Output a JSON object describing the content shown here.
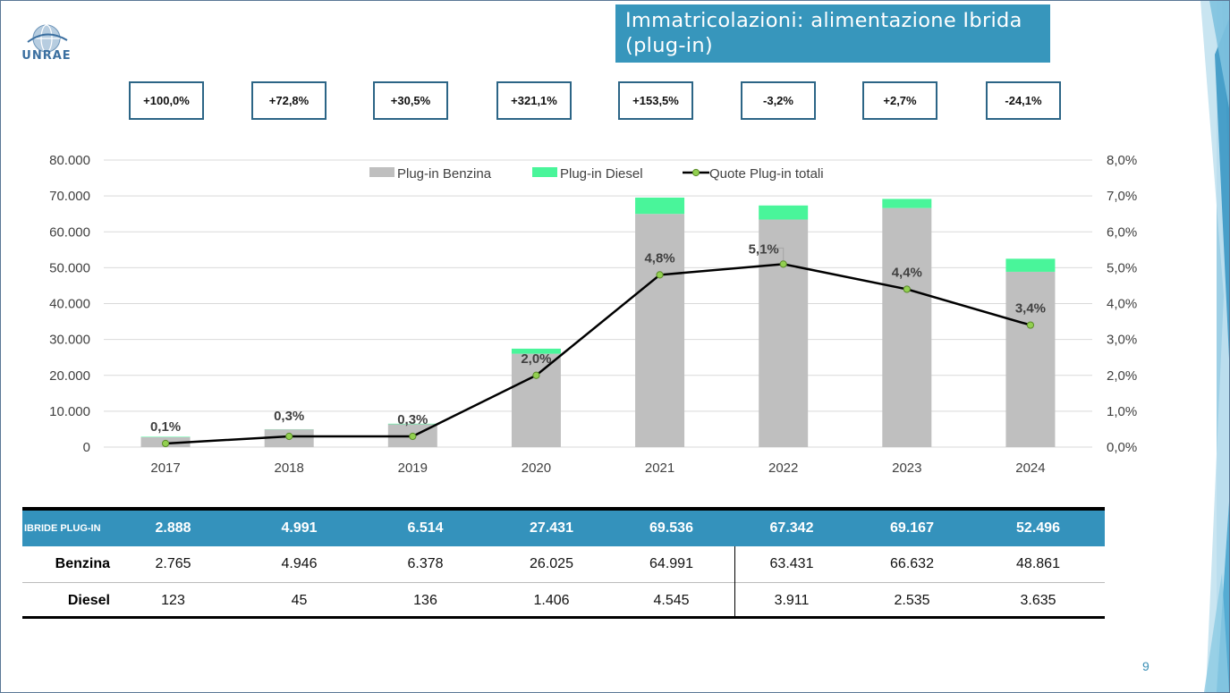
{
  "slide": {
    "title": "Immatricolazioni: alimentazione Ibrida (plug-in)",
    "logo_text": "UNRAE",
    "page_number": "9"
  },
  "percent_changes": [
    "+100,0%",
    "+72,8%",
    "+30,5%",
    "+321,1%",
    "+153,5%",
    "-3,2%",
    "+2,7%",
    "-24,1%"
  ],
  "chart_data": {
    "type": "bar",
    "stacked": true,
    "categories": [
      "2017",
      "2018",
      "2019",
      "2020",
      "2021",
      "2022",
      "2023",
      "2024"
    ],
    "series": [
      {
        "name": "Plug-in Benzina",
        "type": "bar",
        "axis": "left",
        "color": "#bfbfbf",
        "values": [
          2765,
          4946,
          6378,
          26025,
          64991,
          63431,
          66632,
          48861
        ]
      },
      {
        "name": "Plug-in Diesel",
        "type": "bar",
        "axis": "left",
        "color": "#49f59a",
        "values": [
          123,
          45,
          136,
          1406,
          4545,
          3911,
          2535,
          3635
        ]
      },
      {
        "name": "Quote Plug-in totali",
        "type": "line",
        "axis": "right",
        "color": "#000000",
        "marker_color": "#92d050",
        "values": [
          0.1,
          0.3,
          0.3,
          2.0,
          4.8,
          5.1,
          4.4,
          3.4
        ],
        "labels": [
          "0,1%",
          "0,3%",
          "0,3%",
          "2,0%",
          "4,8%",
          "5,1%",
          "4,4%",
          "3,4%"
        ]
      }
    ],
    "ylim": [
      0,
      80000
    ],
    "y2lim": [
      0,
      8.0
    ],
    "yticks": [
      "0",
      "10.000",
      "20.000",
      "30.000",
      "40.000",
      "50.000",
      "60.000",
      "70.000",
      "80.000"
    ],
    "y2ticks": [
      "0,0%",
      "1,0%",
      "2,0%",
      "3,0%",
      "4,0%",
      "5,0%",
      "6,0%",
      "7,0%",
      "8,0%"
    ],
    "grid": true,
    "legend_position": "top"
  },
  "table": {
    "header_label": "IBRIDE PLUG-IN",
    "totals": [
      "2.888",
      "4.991",
      "6.514",
      "27.431",
      "69.536",
      "67.342",
      "69.167",
      "52.496"
    ],
    "rows": [
      {
        "label": "Benzina",
        "values": [
          "2.765",
          "4.946",
          "6.378",
          "26.025",
          "64.991",
          "63.431",
          "66.632",
          "48.861"
        ]
      },
      {
        "label": "Diesel",
        "values": [
          "123",
          "45",
          "136",
          "1.406",
          "4.545",
          "3.911",
          "2.535",
          "3.635"
        ]
      }
    ]
  },
  "colors": {
    "title_bg": "#3796bc",
    "table_header_bg": "#3492bc",
    "box_border": "#2c6586",
    "page_number": "#3a8fb5"
  }
}
